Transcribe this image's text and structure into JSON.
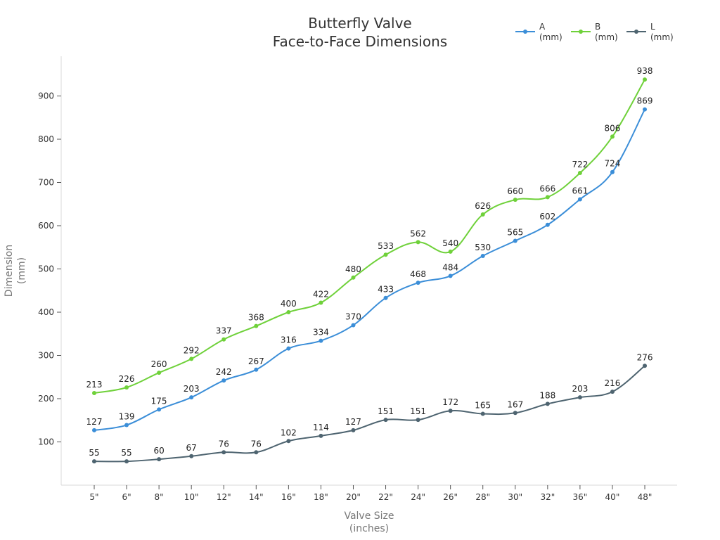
{
  "chart_data": {
    "type": "line",
    "title": [
      "Butterfly Valve",
      "Face-to-Face Dimensions"
    ],
    "xlabel": [
      "Valve Size",
      "(inches)"
    ],
    "ylabel": [
      "Dimension",
      "(mm)"
    ],
    "categories": [
      "5\"",
      "6\"",
      "8\"",
      "10\"",
      "12\"",
      "14\"",
      "16\"",
      "18\"",
      "20\"",
      "22\"",
      "24\"",
      "26\"",
      "28\"",
      "30\"",
      "32\"",
      "36\"",
      "40\"",
      "48\""
    ],
    "ylim": [
      0,
      1000
    ],
    "yticks": [
      100,
      200,
      300,
      400,
      500,
      600,
      700,
      800,
      900
    ],
    "grid": false,
    "legend_position": "top-right",
    "series": [
      {
        "name": [
          "A",
          "(mm)"
        ],
        "color": "#3b8ed8",
        "values": [
          127,
          139,
          175,
          203,
          242,
          267,
          316,
          334,
          370,
          433,
          468,
          484,
          530,
          565,
          602,
          661,
          724,
          869
        ]
      },
      {
        "name": [
          "B",
          "(mm)"
        ],
        "color": "#6fd13a",
        "values": [
          213,
          226,
          260,
          292,
          337,
          368,
          400,
          422,
          480,
          533,
          562,
          540,
          626,
          660,
          666,
          722,
          806,
          938
        ]
      },
      {
        "name": [
          "L",
          "(mm)"
        ],
        "color": "#4e6470",
        "values": [
          55,
          55,
          60,
          67,
          76,
          76,
          102,
          114,
          127,
          151,
          151,
          172,
          165,
          167,
          188,
          203,
          216,
          276
        ]
      }
    ]
  }
}
